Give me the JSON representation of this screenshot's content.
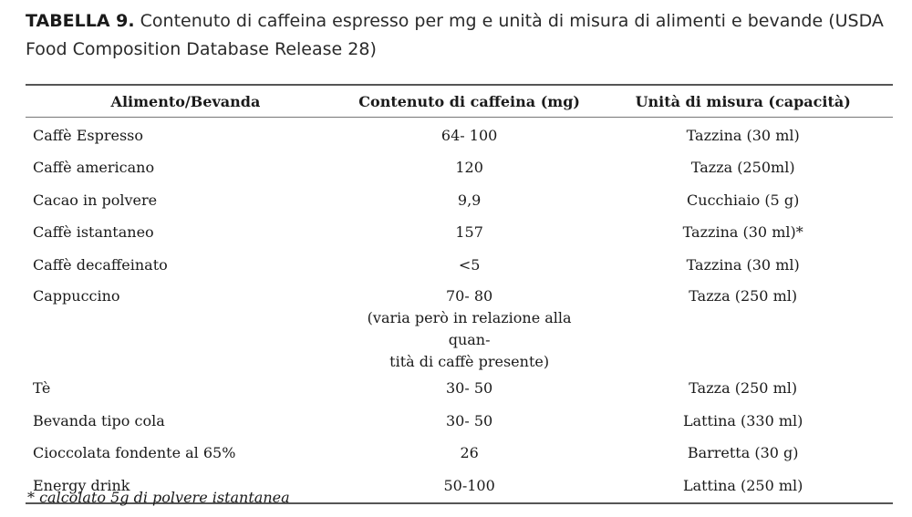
{
  "caption": {
    "label": "TABELLA 9.",
    "text": " Contenuto di caffeina espresso per mg e unità di misura di alimenti e bevande (USDA Food Composition Database Release 28)"
  },
  "table": {
    "headers": [
      "Alimento/Bevanda",
      "Contenuto di caffeina (mg)",
      "Unità di misura (capacità)"
    ],
    "rows": [
      [
        "Caffè Espresso",
        "64- 100",
        "Tazzina (30 ml)"
      ],
      [
        "Caffè americano",
        "120",
        "Tazza (250ml)"
      ],
      [
        "Cacao in polvere",
        "9,9",
        "Cucchiaio (5 g)"
      ],
      [
        "Caffè istantaneo",
        "157",
        "Tazzina (30 ml)*"
      ],
      [
        "Caffè decaffeinato",
        "<5",
        "Tazzina (30 ml)"
      ],
      [
        "Cappuccino",
        "70- 80",
        "Tazza (250 ml)"
      ],
      [
        "Tè",
        "30- 50",
        "Tazza (250 ml)"
      ],
      [
        "Bevanda tipo cola",
        "30- 50",
        "Lattina (330 ml)"
      ],
      [
        "Cioccolata fondente al 65%",
        "26",
        "Barretta (30 g)"
      ],
      [
        "Energy drink",
        "50-100",
        "Lattina (250 ml)"
      ]
    ],
    "cappuccino_note_line1": "(varia però in relazione alla quan-",
    "cappuccino_note_line2": "tità di caffè presente)"
  },
  "footnote": "* calcolato 5g di polvere istantanea"
}
